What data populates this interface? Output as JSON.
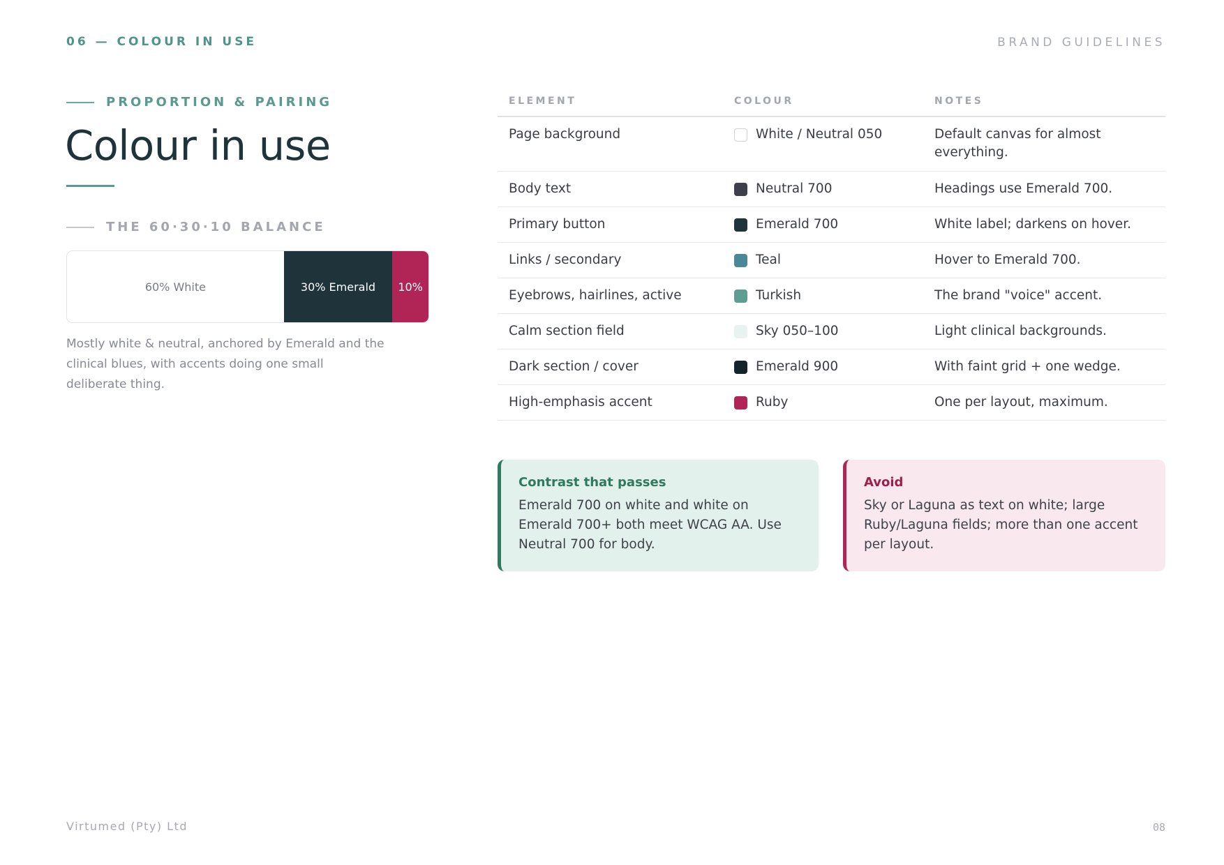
{
  "header": {
    "section": "06 — COLOUR IN USE",
    "doc_title": "BRAND GUIDELINES"
  },
  "intro": {
    "eyebrow": "PROPORTION & PAIRING",
    "title": "Colour in use",
    "subhead": "THE 60·30·10 BALANCE",
    "caption": "Mostly white & neutral, anchored by Emerald and the clinical blues, with accents doing one small deliberate thing."
  },
  "balance": [
    {
      "label": "60% White",
      "share": 60,
      "color": "#ffffff",
      "text_color": "#777b84"
    },
    {
      "label": "30% Emerald",
      "share": 30,
      "color": "#1e333a",
      "text_color": "#ffffff"
    },
    {
      "label": "10%",
      "share": 10,
      "color": "#b12556",
      "text_color": "#ffffff"
    }
  ],
  "table": {
    "headers": [
      "ELEMENT",
      "COLOUR",
      "NOTES"
    ],
    "rows": [
      {
        "element": "Page background",
        "colour": "White / Neutral 050",
        "swatch": "#ffffff",
        "swatch_border": "#cfd2d7",
        "notes": "Default canvas for almost everything."
      },
      {
        "element": "Body text",
        "colour": "Neutral 700",
        "swatch": "#3d3f4a",
        "notes": "Headings use Emerald 700."
      },
      {
        "element": "Primary button",
        "colour": "Emerald 700",
        "swatch": "#1e333a",
        "notes": "White label; darkens on hover."
      },
      {
        "element": "Links / secondary",
        "colour": "Teal",
        "swatch": "#4a8797",
        "notes": "Hover to Emerald 700."
      },
      {
        "element": "Eyebrows, hairlines, active",
        "colour": "Turkish",
        "swatch": "#5e9e92",
        "notes": "The brand \"voice\" accent."
      },
      {
        "element": "Calm section field",
        "colour": "Sky 050–100",
        "swatch": "#e6f3f1",
        "notes": "Light clinical backgrounds."
      },
      {
        "element": "Dark section / cover",
        "colour": "Emerald 900",
        "swatch": "#13242a",
        "notes": "With faint grid + one wedge."
      },
      {
        "element": "High-emphasis accent",
        "colour": "Ruby",
        "swatch": "#b12556",
        "notes": "One per layout, maximum."
      }
    ]
  },
  "callouts": {
    "passes": {
      "title": "Contrast that passes",
      "body": "Emerald 700 on white and white on Emerald 700+ both meet WCAG AA. Use Neutral 700 for body."
    },
    "avoid": {
      "title": "Avoid",
      "body": "Sky or Laguna as text on white; large Ruby/Laguna fields; more than one accent per layout."
    }
  },
  "footer": {
    "company": "Virtumed (Pty) Ltd",
    "page_number": "08"
  }
}
